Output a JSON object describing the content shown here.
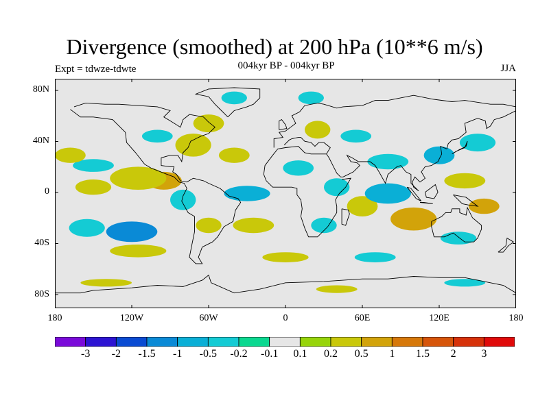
{
  "header": {
    "title": "Divergence (smoothed) at 200 hPa (10**6 m/s)",
    "subtitle": "004kyr BP - 004kyr BP",
    "experiment": "Expt = tdwze-tdwte",
    "season": "JJA"
  },
  "axes": {
    "lat_ticks": [
      "80N",
      "40N",
      "0",
      "40S",
      "80S"
    ],
    "lon_ticks": [
      "180",
      "120W",
      "60W",
      "0",
      "60E",
      "120E",
      "180"
    ]
  },
  "colors": {
    "background": "#e6e6e6",
    "coast": "#000000",
    "levels": [
      "#7a0ad9",
      "#2d14d2",
      "#0a4bd2",
      "#0a8ad6",
      "#0aafd6",
      "#14cbd4",
      "#0ad890",
      "#e6e6e6",
      "#97d40a",
      "#c9c80a",
      "#d2a30a",
      "#d6780a",
      "#d6550a",
      "#d6320a",
      "#e00a0a"
    ]
  },
  "colorbar": {
    "labels": [
      "-3",
      "-2",
      "-1.5",
      "-1",
      "-0.5",
      "-0.2",
      "-0.1",
      "0.1",
      "0.2",
      "0.5",
      "1",
      "1.5",
      "2",
      "3"
    ]
  },
  "field_blobs": [
    {
      "lon": -150,
      "lat": 5,
      "level": 9,
      "sx": 14,
      "sy": 6
    },
    {
      "lon": -150,
      "lat": 22,
      "level": 5,
      "sx": 16,
      "sy": 5
    },
    {
      "lon": -168,
      "lat": 30,
      "level": 9,
      "sx": 12,
      "sy": 6
    },
    {
      "lon": -155,
      "lat": -27,
      "level": 5,
      "sx": 14,
      "sy": 7
    },
    {
      "lon": -120,
      "lat": -30,
      "level": 3,
      "sx": 20,
      "sy": 8
    },
    {
      "lon": -115,
      "lat": -45,
      "level": 9,
      "sx": 22,
      "sy": 5
    },
    {
      "lon": -95,
      "lat": 10,
      "level": 10,
      "sx": 14,
      "sy": 7
    },
    {
      "lon": -115,
      "lat": 12,
      "level": 9,
      "sx": 22,
      "sy": 9
    },
    {
      "lon": -72,
      "lat": 38,
      "level": 9,
      "sx": 14,
      "sy": 9
    },
    {
      "lon": -100,
      "lat": 45,
      "level": 5,
      "sx": 12,
      "sy": 5
    },
    {
      "lon": -60,
      "lat": -25,
      "level": 9,
      "sx": 10,
      "sy": 6
    },
    {
      "lon": -80,
      "lat": -5,
      "level": 5,
      "sx": 10,
      "sy": 8
    },
    {
      "lon": -30,
      "lat": 0,
      "level": 4,
      "sx": 18,
      "sy": 6
    },
    {
      "lon": -25,
      "lat": -25,
      "level": 9,
      "sx": 16,
      "sy": 6
    },
    {
      "lon": -40,
      "lat": 30,
      "level": 9,
      "sx": 12,
      "sy": 6
    },
    {
      "lon": -60,
      "lat": 55,
      "level": 9,
      "sx": 12,
      "sy": 7
    },
    {
      "lon": -40,
      "lat": 75,
      "level": 5,
      "sx": 10,
      "sy": 5
    },
    {
      "lon": 25,
      "lat": 50,
      "level": 9,
      "sx": 10,
      "sy": 7
    },
    {
      "lon": 20,
      "lat": 75,
      "level": 5,
      "sx": 10,
      "sy": 5
    },
    {
      "lon": 55,
      "lat": 45,
      "level": 5,
      "sx": 12,
      "sy": 5
    },
    {
      "lon": 10,
      "lat": 20,
      "level": 5,
      "sx": 12,
      "sy": 6
    },
    {
      "lon": 40,
      "lat": 5,
      "level": 5,
      "sx": 10,
      "sy": 7
    },
    {
      "lon": 30,
      "lat": -25,
      "level": 5,
      "sx": 10,
      "sy": 6
    },
    {
      "lon": 60,
      "lat": -10,
      "level": 9,
      "sx": 12,
      "sy": 8
    },
    {
      "lon": 80,
      "lat": 0,
      "level": 4,
      "sx": 18,
      "sy": 8
    },
    {
      "lon": 100,
      "lat": -20,
      "level": 10,
      "sx": 18,
      "sy": 9
    },
    {
      "lon": 80,
      "lat": 25,
      "level": 5,
      "sx": 16,
      "sy": 6
    },
    {
      "lon": 120,
      "lat": 30,
      "level": 4,
      "sx": 12,
      "sy": 7
    },
    {
      "lon": 140,
      "lat": 10,
      "level": 9,
      "sx": 16,
      "sy": 6
    },
    {
      "lon": 150,
      "lat": 40,
      "level": 5,
      "sx": 14,
      "sy": 7
    },
    {
      "lon": 155,
      "lat": -10,
      "level": 10,
      "sx": 12,
      "sy": 6
    },
    {
      "lon": 135,
      "lat": -35,
      "level": 5,
      "sx": 14,
      "sy": 5
    },
    {
      "lon": 0,
      "lat": -50,
      "level": 9,
      "sx": 18,
      "sy": 4
    },
    {
      "lon": 70,
      "lat": -50,
      "level": 5,
      "sx": 16,
      "sy": 4
    },
    {
      "lon": -140,
      "lat": -70,
      "level": 9,
      "sx": 20,
      "sy": 3
    },
    {
      "lon": 40,
      "lat": -75,
      "level": 9,
      "sx": 16,
      "sy": 3
    },
    {
      "lon": 140,
      "lat": -70,
      "level": 5,
      "sx": 16,
      "sy": 3
    }
  ],
  "coastlines": [
    [
      [
        -168,
        66
      ],
      [
        -160,
        60
      ],
      [
        -150,
        60
      ],
      [
        -135,
        58
      ],
      [
        -125,
        48
      ],
      [
        -124,
        40
      ],
      [
        -117,
        32
      ],
      [
        -110,
        23
      ],
      [
        -105,
        20
      ],
      [
        -95,
        16
      ],
      [
        -87,
        13
      ],
      [
        -83,
        9
      ],
      [
        -79,
        8
      ],
      [
        -77,
        4
      ],
      [
        -80,
        -2
      ],
      [
        -81,
        -6
      ],
      [
        -76,
        -15
      ],
      [
        -71,
        -18
      ],
      [
        -71,
        -30
      ],
      [
        -73,
        -40
      ],
      [
        -75,
        -50
      ],
      [
        -70,
        -55
      ],
      [
        -65,
        -55
      ],
      [
        -68,
        -50
      ],
      [
        -65,
        -42
      ],
      [
        -57,
        -38
      ],
      [
        -53,
        -34
      ],
      [
        -48,
        -26
      ],
      [
        -41,
        -22
      ],
      [
        -39,
        -13
      ],
      [
        -35,
        -7
      ],
      [
        -37,
        -4
      ],
      [
        -44,
        -2
      ],
      [
        -51,
        4
      ],
      [
        -60,
        8
      ],
      [
        -64,
        10
      ],
      [
        -72,
        12
      ],
      [
        -77,
        9
      ],
      [
        -82,
        10
      ],
      [
        -85,
        15
      ],
      [
        -88,
        17
      ],
      [
        -87,
        21
      ],
      [
        -90,
        21
      ],
      [
        -97,
        22
      ],
      [
        -97,
        28
      ],
      [
        -90,
        30
      ],
      [
        -84,
        30
      ],
      [
        -81,
        25
      ],
      [
        -80,
        32
      ],
      [
        -76,
        36
      ],
      [
        -74,
        41
      ],
      [
        -70,
        43
      ],
      [
        -66,
        45
      ],
      [
        -60,
        47
      ],
      [
        -55,
        52
      ],
      [
        -60,
        56
      ],
      [
        -64,
        60
      ],
      [
        -75,
        62
      ],
      [
        -80,
        58
      ],
      [
        -82,
        52
      ],
      [
        -90,
        57
      ],
      [
        -95,
        60
      ],
      [
        -90,
        65
      ],
      [
        -100,
        68
      ],
      [
        -115,
        69
      ],
      [
        -130,
        70
      ],
      [
        -141,
        70
      ],
      [
        -156,
        71
      ],
      [
        -165,
        68
      ]
    ],
    [
      [
        -9,
        36
      ],
      [
        -9,
        43
      ],
      [
        -2,
        44
      ],
      [
        -5,
        48
      ],
      [
        0,
        49
      ],
      [
        4,
        52
      ],
      [
        8,
        55
      ],
      [
        5,
        61
      ],
      [
        11,
        64
      ],
      [
        15,
        69
      ],
      [
        25,
        71
      ],
      [
        30,
        70
      ],
      [
        40,
        67
      ],
      [
        45,
        68
      ],
      [
        60,
        69
      ],
      [
        70,
        73
      ],
      [
        80,
        73
      ],
      [
        100,
        77
      ],
      [
        115,
        74
      ],
      [
        130,
        72
      ],
      [
        140,
        73
      ],
      [
        160,
        70
      ],
      [
        170,
        70
      ],
      [
        180,
        68
      ]
    ],
    [
      [
        180,
        65
      ],
      [
        170,
        60
      ],
      [
        163,
        58
      ],
      [
        160,
        53
      ],
      [
        157,
        51
      ],
      [
        156,
        57
      ],
      [
        150,
        59
      ],
      [
        140,
        55
      ],
      [
        141,
        48
      ],
      [
        135,
        43
      ],
      [
        130,
        42
      ],
      [
        127,
        39
      ],
      [
        126,
        35
      ],
      [
        121,
        37
      ],
      [
        122,
        31
      ],
      [
        119,
        25
      ],
      [
        114,
        22
      ],
      [
        109,
        21
      ],
      [
        106,
        17
      ],
      [
        109,
        12
      ],
      [
        105,
        9
      ],
      [
        101,
        13
      ],
      [
        99,
        9
      ],
      [
        100,
        5
      ],
      [
        104,
        2
      ],
      [
        98,
        8
      ],
      [
        98,
        15
      ],
      [
        94,
        17
      ],
      [
        90,
        22
      ],
      [
        87,
        21
      ],
      [
        80,
        15
      ],
      [
        78,
        8
      ],
      [
        73,
        17
      ],
      [
        70,
        22
      ],
      [
        66,
        25
      ],
      [
        57,
        25
      ],
      [
        52,
        28
      ],
      [
        48,
        30
      ],
      [
        51,
        25
      ],
      [
        56,
        24
      ],
      [
        58,
        22
      ],
      [
        53,
        17
      ],
      [
        45,
        13
      ],
      [
        43,
        13
      ],
      [
        40,
        16
      ],
      [
        37,
        22
      ],
      [
        34,
        28
      ],
      [
        32,
        31
      ],
      [
        29,
        31
      ],
      [
        20,
        31
      ],
      [
        15,
        32
      ],
      [
        10,
        37
      ],
      [
        0,
        36
      ],
      [
        -6,
        35
      ],
      [
        -10,
        30
      ],
      [
        -16,
        22
      ],
      [
        -17,
        15
      ],
      [
        -15,
        10
      ],
      [
        -10,
        5
      ],
      [
        -5,
        5
      ],
      [
        5,
        5
      ],
      [
        9,
        4
      ],
      [
        9,
        -1
      ],
      [
        12,
        -5
      ],
      [
        13,
        -12
      ],
      [
        12,
        -18
      ],
      [
        15,
        -27
      ],
      [
        18,
        -34
      ],
      [
        25,
        -34
      ],
      [
        33,
        -26
      ],
      [
        35,
        -23
      ],
      [
        40,
        -15
      ],
      [
        40,
        -10
      ],
      [
        39,
        -5
      ],
      [
        42,
        0
      ],
      [
        47,
        5
      ],
      [
        51,
        12
      ],
      [
        44,
        11
      ]
    ],
    [
      [
        32,
        31
      ],
      [
        35,
        36
      ],
      [
        30,
        40
      ],
      [
        26,
        40
      ],
      [
        23,
        37
      ],
      [
        20,
        40
      ],
      [
        15,
        41
      ],
      [
        12,
        44
      ],
      [
        10,
        44
      ],
      [
        5,
        43
      ],
      [
        3,
        42
      ],
      [
        -1,
        38
      ]
    ],
    [
      [
        44,
        -12
      ],
      [
        49,
        -13
      ],
      [
        50,
        -16
      ],
      [
        47,
        -25
      ],
      [
        44,
        -24
      ],
      [
        44,
        -20
      ],
      [
        44,
        -12
      ]
    ],
    [
      [
        114,
        -22
      ],
      [
        114,
        -26
      ],
      [
        116,
        -34
      ],
      [
        124,
        -34
      ],
      [
        131,
        -31
      ],
      [
        136,
        -35
      ],
      [
        140,
        -38
      ],
      [
        147,
        -38
      ],
      [
        150,
        -35
      ],
      [
        153,
        -28
      ],
      [
        153,
        -25
      ],
      [
        146,
        -19
      ],
      [
        142,
        -11
      ],
      [
        141,
        -17
      ],
      [
        136,
        -15
      ],
      [
        136,
        -12
      ],
      [
        130,
        -12
      ],
      [
        129,
        -15
      ],
      [
        125,
        -15
      ],
      [
        122,
        -18
      ],
      [
        114,
        -22
      ]
    ],
    [
      [
        95,
        5
      ],
      [
        98,
        4
      ],
      [
        106,
        -6
      ],
      [
        102,
        -4
      ],
      [
        95,
        5
      ]
    ],
    [
      [
        105,
        -7
      ],
      [
        115,
        -8
      ],
      [
        108,
        -7
      ],
      [
        105,
        -7
      ]
    ],
    [
      [
        109,
        1
      ],
      [
        117,
        7
      ],
      [
        119,
        1
      ],
      [
        116,
        -4
      ],
      [
        110,
        -3
      ],
      [
        109,
        1
      ]
    ],
    [
      [
        131,
        -1
      ],
      [
        141,
        -3
      ],
      [
        150,
        -10
      ],
      [
        143,
        -9
      ],
      [
        138,
        -8
      ],
      [
        131,
        -1
      ]
    ],
    [
      [
        130,
        31
      ],
      [
        135,
        34
      ],
      [
        141,
        37
      ],
      [
        142,
        41
      ],
      [
        140,
        36
      ],
      [
        133,
        33
      ],
      [
        130,
        31
      ]
    ],
    [
      [
        -5,
        50
      ],
      [
        1,
        51
      ],
      [
        0,
        54
      ],
      [
        -3,
        58
      ],
      [
        -5,
        57
      ],
      [
        -5,
        50
      ]
    ],
    [
      [
        -45,
        60
      ],
      [
        -50,
        65
      ],
      [
        -55,
        70
      ],
      [
        -60,
        76
      ],
      [
        -70,
        78
      ],
      [
        -60,
        82
      ],
      [
        -40,
        83
      ],
      [
        -20,
        82
      ],
      [
        -20,
        75
      ],
      [
        -25,
        70
      ],
      [
        -30,
        68
      ],
      [
        -40,
        65
      ],
      [
        -45,
        60
      ]
    ],
    [
      [
        -180,
        -78
      ],
      [
        -160,
        -78
      ],
      [
        -150,
        -76
      ],
      [
        -120,
        -74
      ],
      [
        -100,
        -72
      ],
      [
        -80,
        -73
      ],
      [
        -65,
        -68
      ],
      [
        -60,
        -64
      ],
      [
        -58,
        -70
      ],
      [
        -40,
        -78
      ],
      [
        -20,
        -75
      ],
      [
        0,
        -70
      ],
      [
        30,
        -69
      ],
      [
        60,
        -67
      ],
      [
        80,
        -67
      ],
      [
        100,
        -65
      ],
      [
        120,
        -66
      ],
      [
        140,
        -66
      ],
      [
        160,
        -70
      ],
      [
        170,
        -72
      ],
      [
        180,
        -78
      ]
    ],
    [
      [
        166,
        -46
      ],
      [
        170,
        -46
      ],
      [
        174,
        -41
      ],
      [
        178,
        -38
      ],
      [
        173,
        -35
      ],
      [
        172,
        -41
      ],
      [
        166,
        -46
      ]
    ]
  ]
}
